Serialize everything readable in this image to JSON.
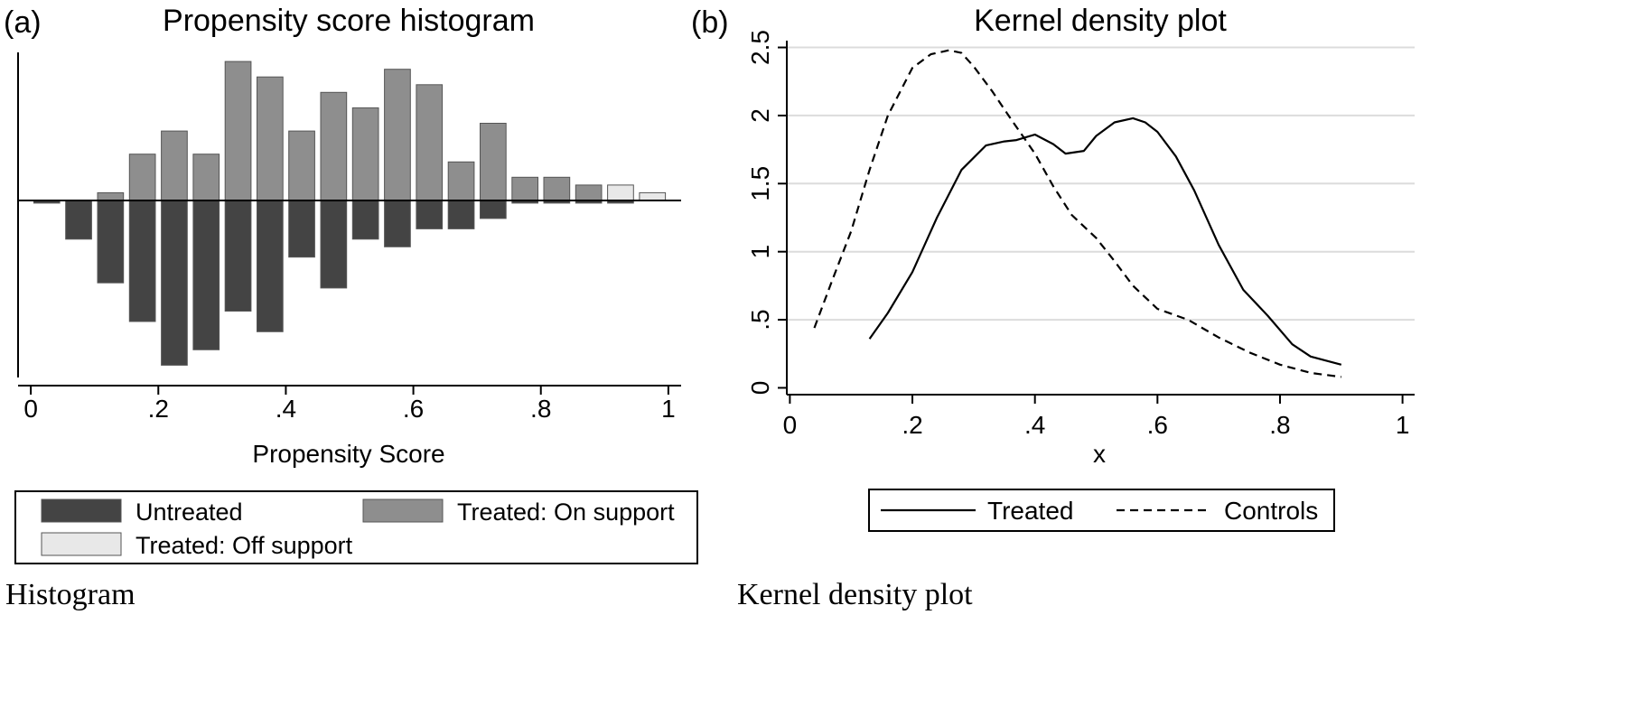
{
  "panels": {
    "histogram": {
      "panel_label": "(a)",
      "caption": "Histogram"
    },
    "density": {
      "panel_label": "(b)",
      "caption": "Kernel density plot"
    }
  },
  "colors": {
    "untreated": "#444444",
    "treated_on": "#8e8e8e",
    "treated_off": "#e8e8e8",
    "grid": "#dcdcdc",
    "line": "#000000"
  },
  "chart_data": [
    {
      "type": "bar",
      "title": "Propensity score histogram",
      "xlabel": "Propensity Score",
      "ylabel": "",
      "xlim": [
        -0.02,
        1.02
      ],
      "xticks": [
        0,
        0.2,
        0.4,
        0.6,
        0.8,
        1
      ],
      "xtick_labels": [
        "0",
        ".2",
        ".4",
        ".6",
        ".8",
        "1"
      ],
      "bin_width": 0.05,
      "y_axis_labels": "none",
      "grid": false,
      "legend_position": "bottom",
      "bin_centers": [
        0.025,
        0.075,
        0.125,
        0.175,
        0.225,
        0.275,
        0.325,
        0.375,
        0.425,
        0.475,
        0.525,
        0.575,
        0.625,
        0.675,
        0.725,
        0.775,
        0.825,
        0.875,
        0.925,
        0.975
      ],
      "series": [
        {
          "name": "Untreated",
          "direction": "down",
          "values": [
            1,
            15,
            32,
            47,
            64,
            58,
            43,
            51,
            22,
            34,
            15,
            18,
            11,
            11,
            7,
            1,
            1,
            1,
            1,
            0
          ]
        },
        {
          "name": "Treated: On support",
          "direction": "up",
          "values": [
            0,
            0,
            3,
            18,
            27,
            18,
            54,
            48,
            27,
            42,
            36,
            51,
            45,
            15,
            30,
            9,
            9,
            6,
            0,
            0
          ]
        },
        {
          "name": "Treated: Off support",
          "direction": "up",
          "values": [
            0,
            0,
            0,
            0,
            0,
            0,
            0,
            0,
            0,
            0,
            0,
            0,
            0,
            0,
            0,
            0,
            0,
            0,
            6,
            3
          ]
        }
      ]
    },
    {
      "type": "line",
      "title": "Kernel density plot",
      "xlabel": "x",
      "ylabel": "",
      "xlim": [
        -0.005,
        1.005
      ],
      "ylim": [
        -0.05,
        2.55
      ],
      "xticks": [
        0,
        0.2,
        0.4,
        0.6,
        0.8,
        1
      ],
      "xtick_labels": [
        "0",
        ".2",
        ".4",
        ".6",
        ".8",
        "1"
      ],
      "yticks": [
        0,
        0.5,
        1,
        1.5,
        2,
        2.5
      ],
      "ytick_labels": [
        "0",
        ".5",
        "1",
        "1.5",
        "2",
        "2.5"
      ],
      "grid": true,
      "legend_position": "bottom",
      "series": [
        {
          "name": "Treated",
          "dash": "solid",
          "x": [
            0.13,
            0.16,
            0.2,
            0.24,
            0.28,
            0.32,
            0.35,
            0.37,
            0.4,
            0.43,
            0.45,
            0.48,
            0.5,
            0.53,
            0.56,
            0.58,
            0.6,
            0.63,
            0.66,
            0.7,
            0.74,
            0.78,
            0.82,
            0.85,
            0.9
          ],
          "y": [
            0.36,
            0.55,
            0.85,
            1.25,
            1.6,
            1.78,
            1.81,
            1.82,
            1.86,
            1.79,
            1.72,
            1.74,
            1.85,
            1.95,
            1.98,
            1.95,
            1.88,
            1.7,
            1.45,
            1.05,
            0.72,
            0.53,
            0.32,
            0.23,
            0.17
          ]
        },
        {
          "name": "Controls",
          "dash": "dashed",
          "x": [
            0.04,
            0.07,
            0.1,
            0.13,
            0.16,
            0.2,
            0.23,
            0.26,
            0.28,
            0.3,
            0.33,
            0.36,
            0.4,
            0.43,
            0.46,
            0.5,
            0.53,
            0.56,
            0.6,
            0.65,
            0.7,
            0.75,
            0.8,
            0.85,
            0.9
          ],
          "y": [
            0.44,
            0.8,
            1.15,
            1.6,
            2.0,
            2.35,
            2.45,
            2.48,
            2.46,
            2.36,
            2.18,
            1.98,
            1.72,
            1.48,
            1.27,
            1.1,
            0.93,
            0.75,
            0.58,
            0.5,
            0.37,
            0.26,
            0.17,
            0.11,
            0.08
          ]
        }
      ]
    }
  ]
}
